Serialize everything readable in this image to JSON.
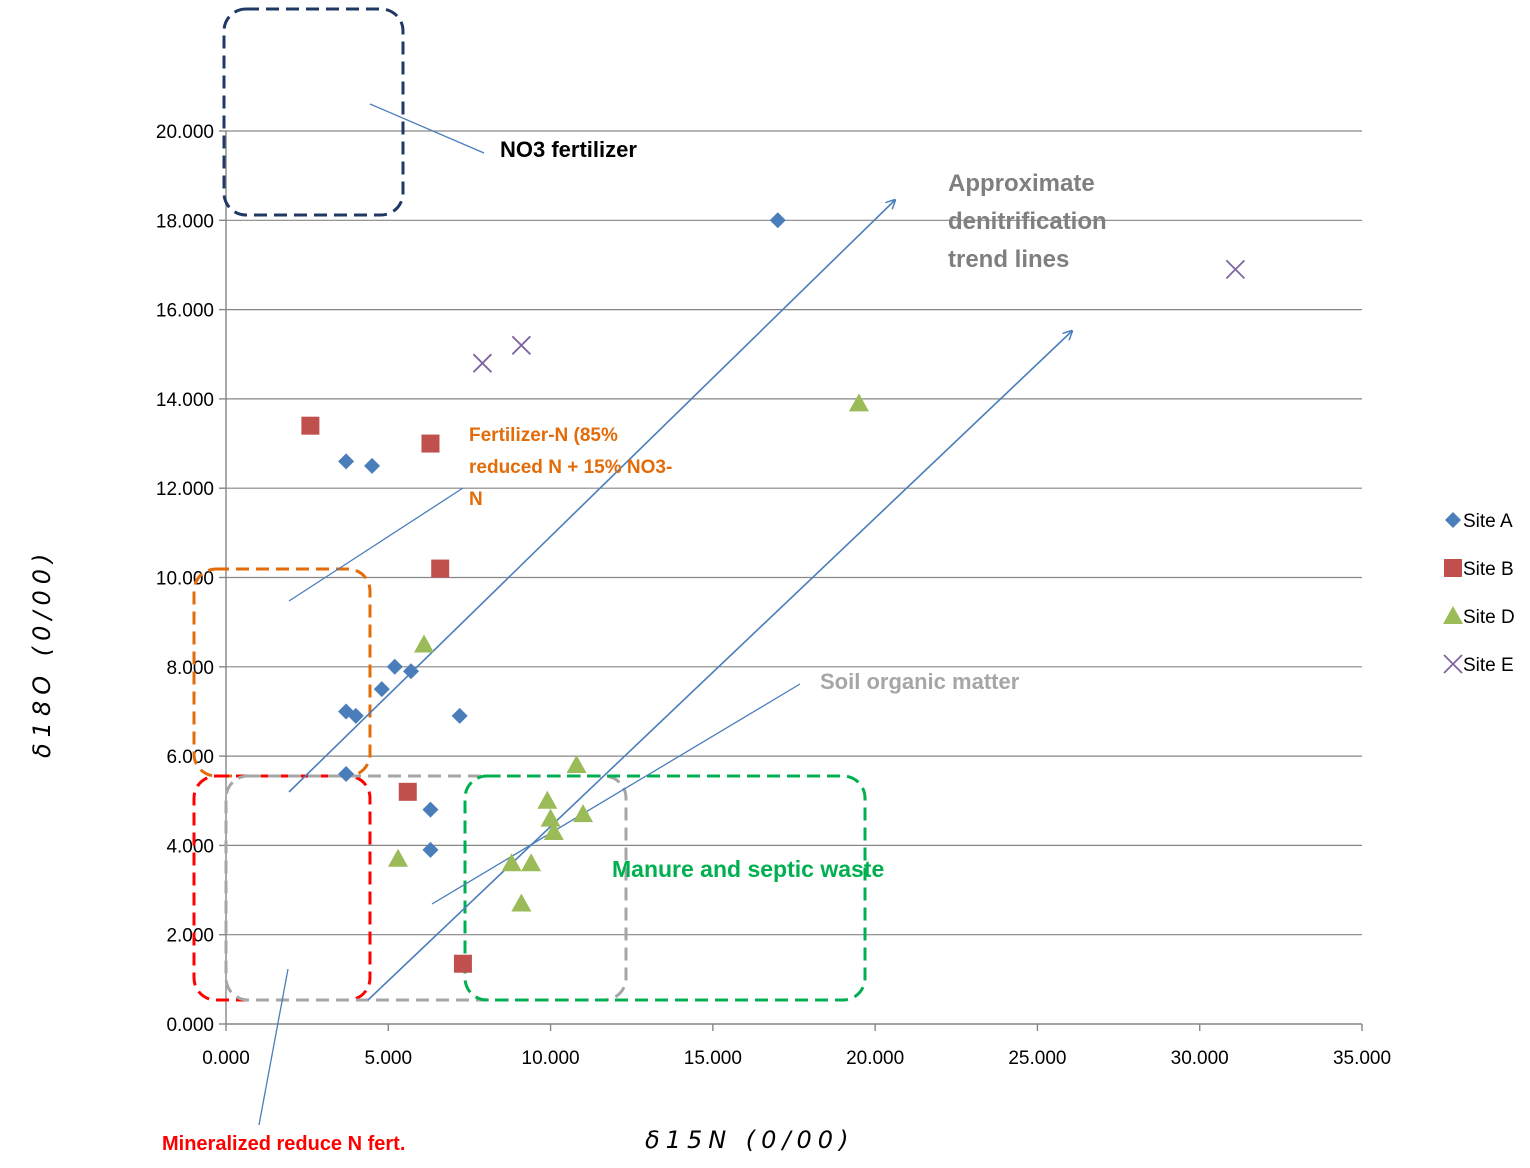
{
  "chart_data": {
    "type": "scatter",
    "xlabel": "δ15N (0/00)",
    "ylabel": "δ18O (0/00)",
    "xlim": [
      0,
      35
    ],
    "ylim": [
      0,
      20
    ],
    "x_ticks": [
      "0.000",
      "5.000",
      "10.000",
      "15.000",
      "20.000",
      "25.000",
      "30.000",
      "35.000"
    ],
    "y_ticks": [
      "0.000",
      "2.000",
      "4.000",
      "6.000",
      "8.000",
      "10.000",
      "12.000",
      "14.000",
      "16.000",
      "18.000",
      "20.000"
    ],
    "grid": "horizontal major gridlines",
    "legend_position": "right",
    "series": [
      {
        "name": "Site A",
        "marker": "diamond",
        "color": "#4a7ebb",
        "points": [
          [
            3.7,
            12.6
          ],
          [
            4.5,
            12.5
          ],
          [
            5.2,
            8.0
          ],
          [
            5.7,
            7.9
          ],
          [
            4.8,
            7.5
          ],
          [
            3.7,
            7.0
          ],
          [
            4.0,
            6.9
          ],
          [
            7.2,
            6.9
          ],
          [
            3.7,
            5.6
          ],
          [
            6.3,
            4.8
          ],
          [
            6.3,
            3.9
          ],
          [
            17.0,
            18.0
          ]
        ]
      },
      {
        "name": "Site B",
        "marker": "square",
        "color": "#c0504d",
        "points": [
          [
            2.6,
            13.4
          ],
          [
            6.3,
            13.0
          ],
          [
            6.6,
            10.2
          ],
          [
            5.6,
            5.2
          ],
          [
            7.3,
            1.35
          ]
        ]
      },
      {
        "name": "Site D",
        "marker": "triangle",
        "color": "#9bbb59",
        "points": [
          [
            6.1,
            8.5
          ],
          [
            10.8,
            5.8
          ],
          [
            9.9,
            5.0
          ],
          [
            10.0,
            4.6
          ],
          [
            11.0,
            4.7
          ],
          [
            10.1,
            4.3
          ],
          [
            5.3,
            3.7
          ],
          [
            8.8,
            3.6
          ],
          [
            9.4,
            3.6
          ],
          [
            9.1,
            2.7
          ],
          [
            19.5,
            13.9
          ]
        ]
      },
      {
        "name": "Site E",
        "marker": "x",
        "color": "#8064a2",
        "points": [
          [
            7.9,
            14.8
          ],
          [
            9.1,
            15.2
          ],
          [
            31.1,
            16.9
          ]
        ]
      }
    ],
    "annotations": [
      {
        "name": "no3-fertilizer",
        "text": "NO3 fertilizer",
        "color": "#000000"
      },
      {
        "name": "denitrification",
        "text": "Approximate denitrification trend lines",
        "color": "#7f7f7f"
      },
      {
        "name": "fertilizer-n",
        "text": "Fertilizer-N (85% reduced N + 15% NO3-N",
        "color": "#e36c09"
      },
      {
        "name": "soil-organic",
        "text": "Soil organic matter",
        "color": "#a6a6a6"
      },
      {
        "name": "manure",
        "text": "Manure and septic waste",
        "color": "#00b050"
      },
      {
        "name": "mineralized",
        "text": "Mineralized reduce N fert.",
        "color": "#ff0000"
      }
    ]
  }
}
